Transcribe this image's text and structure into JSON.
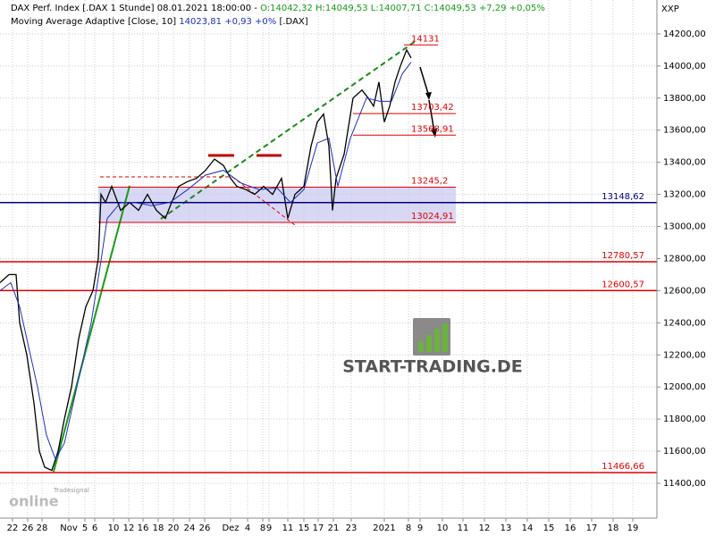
{
  "chart_data": {
    "type": "line",
    "title": "DAX Perf. Index [.DAX  1 Stunde] 08.01.2021 18:00:00 -",
    "ohlc_text": "O:14042,32 H:14049,53 L:14007,71 C:14049,53 +7,29 +0,05%",
    "indicator_title": "Moving Average Adaptive [Close, 10]",
    "indicator_value": "14023,81 +0,93 +0%",
    "indicator_symbol": "[.DAX]",
    "axis_name": "XXP",
    "watermark": "START-TRADING.DE",
    "logo_top": "Tradesignal",
    "logo_bottom": "online",
    "xlim": [
      0,
      735
    ],
    "ylim": [
      11194,
      14411
    ],
    "yticks": [
      {
        "value": 11400,
        "label": "11400,00"
      },
      {
        "value": 11600,
        "label": "11600,00"
      },
      {
        "value": 11800,
        "label": "11800,00"
      },
      {
        "value": 12000,
        "label": "12000,00"
      },
      {
        "value": 12200,
        "label": "12200,00"
      },
      {
        "value": 12400,
        "label": "12400,00"
      },
      {
        "value": 12600,
        "label": "12600,00"
      },
      {
        "value": 12800,
        "label": "12800,00"
      },
      {
        "value": 13000,
        "label": "13000,00"
      },
      {
        "value": 13200,
        "label": "13200,00"
      },
      {
        "value": 13400,
        "label": "13400,00"
      },
      {
        "value": 13600,
        "label": "13600,00"
      },
      {
        "value": 13800,
        "label": "13800,00"
      },
      {
        "value": 14000,
        "label": "14000,00"
      },
      {
        "value": 14200,
        "label": "14200,00"
      }
    ],
    "xticks": [
      {
        "value": 14,
        "label": "22"
      },
      {
        "value": 31,
        "label": "26"
      },
      {
        "value": 47,
        "label": "28"
      },
      {
        "value": 77,
        "label": "Nov"
      },
      {
        "value": 95,
        "label": "5"
      },
      {
        "value": 106,
        "label": "6"
      },
      {
        "value": 127,
        "label": "10"
      },
      {
        "value": 144,
        "label": "12"
      },
      {
        "value": 160,
        "label": "16"
      },
      {
        "value": 177,
        "label": "18"
      },
      {
        "value": 194,
        "label": "20"
      },
      {
        "value": 212,
        "label": "24"
      },
      {
        "value": 229,
        "label": "26"
      },
      {
        "value": 258,
        "label": "Dez"
      },
      {
        "value": 277,
        "label": "4"
      },
      {
        "value": 294,
        "label": "8"
      },
      {
        "value": 301,
        "label": "9"
      },
      {
        "value": 322,
        "label": "11"
      },
      {
        "value": 340,
        "label": "15"
      },
      {
        "value": 356,
        "label": "17"
      },
      {
        "value": 373,
        "label": "21"
      },
      {
        "value": 393,
        "label": "23"
      },
      {
        "value": 430,
        "label": "2021"
      },
      {
        "value": 457,
        "label": "8"
      },
      {
        "value": 470,
        "label": "9"
      },
      {
        "value": 495,
        "label": "10"
      },
      {
        "value": 518,
        "label": "11"
      },
      {
        "value": 542,
        "label": "12"
      },
      {
        "value": 566,
        "label": "13"
      },
      {
        "value": 590,
        "label": "14"
      },
      {
        "value": 614,
        "label": "15"
      },
      {
        "value": 638,
        "label": "16"
      },
      {
        "value": 662,
        "label": "17"
      },
      {
        "value": 686,
        "label": "18"
      },
      {
        "value": 708,
        "label": "19"
      }
    ],
    "grid": true,
    "series": [
      {
        "name": "DAX Perf. Index",
        "color": "#000000",
        "x": [
          0,
          10,
          18,
          22,
          30,
          38,
          44,
          50,
          58,
          65,
          72,
          80,
          88,
          96,
          104,
          110,
          113,
          118,
          125,
          135,
          145,
          155,
          165,
          175,
          185,
          192,
          200,
          210,
          220,
          230,
          240,
          250,
          258,
          265,
          275,
          285,
          295,
          305,
          315,
          322,
          330,
          340,
          348,
          355,
          362,
          368,
          372,
          376,
          385,
          395,
          405,
          412,
          418,
          424,
          430,
          436,
          442,
          448,
          455,
          460
        ],
        "values": [
          12650,
          12700,
          12700,
          12400,
          12200,
          11900,
          11600,
          11500,
          11480,
          11600,
          11800,
          12000,
          12300,
          12500,
          12600,
          12800,
          13200,
          13150,
          13250,
          13100,
          13150,
          13100,
          13200,
          13100,
          13050,
          13150,
          13250,
          13280,
          13300,
          13350,
          13420,
          13380,
          13300,
          13250,
          13230,
          13200,
          13250,
          13200,
          13300,
          13050,
          13200,
          13250,
          13500,
          13650,
          13700,
          13500,
          13100,
          13300,
          13450,
          13800,
          13850,
          13800,
          13750,
          13900,
          13650,
          13750,
          13900,
          14000,
          14100,
          14050
        ]
      },
      {
        "name": "Moving Average Adaptive",
        "color": "#1f2fbf",
        "x": [
          0,
          12,
          22,
          32,
          42,
          52,
          62,
          72,
          82,
          92,
          102,
          112,
          120,
          135,
          150,
          170,
          190,
          210,
          230,
          250,
          270,
          290,
          310,
          325,
          340,
          355,
          368,
          378,
          392,
          410,
          425,
          438,
          450,
          460
        ],
        "values": [
          12600,
          12650,
          12500,
          12250,
          12000,
          11700,
          11550,
          11650,
          11900,
          12150,
          12400,
          12750,
          13050,
          13150,
          13150,
          13130,
          13150,
          13230,
          13320,
          13350,
          13270,
          13230,
          13240,
          13150,
          13230,
          13520,
          13550,
          13250,
          13550,
          13800,
          13780,
          13780,
          13950,
          14023.81
        ]
      }
    ],
    "levels": [
      {
        "value": 14131,
        "color": "#e00000",
        "from": 452,
        "to": 490
      },
      {
        "value": {
          "value": 13703.42,
          "label": "13703,42"
        },
        "color": "#e00000",
        "from": 395,
        "to": 510
      },
      {
        "value": {
          "value": 13568.91,
          "label": "13568,91"
        },
        "color": "#e00000",
        "from": 395,
        "to": 510
      },
      {
        "value": {
          "value": 13245.2,
          "label": "13245,2"
        },
        "color": "#e00000",
        "from": 110,
        "to": 510
      },
      {
        "value": {
          "value": 13024.91,
          "label": "13024,91"
        },
        "color": "#e00000",
        "from": 110,
        "to": 510
      },
      {
        "value": {
          "value": 13148.62,
          "label": "13148,62"
        },
        "color": "#000080",
        "from": 0,
        "to": 735
      },
      {
        "value": {
          "value": 12780.57,
          "label": "12780,57"
        },
        "color": "#e00000",
        "from": 0,
        "to": 735
      },
      {
        "value": {
          "value": 12600.57,
          "label": "12600,57"
        },
        "color": "#e00000",
        "from": 0,
        "to": 735
      },
      {
        "value": {
          "value": 11466.66,
          "label": "11466,66"
        },
        "color": "#e00000",
        "from": 0,
        "to": 735
      }
    ]
  }
}
